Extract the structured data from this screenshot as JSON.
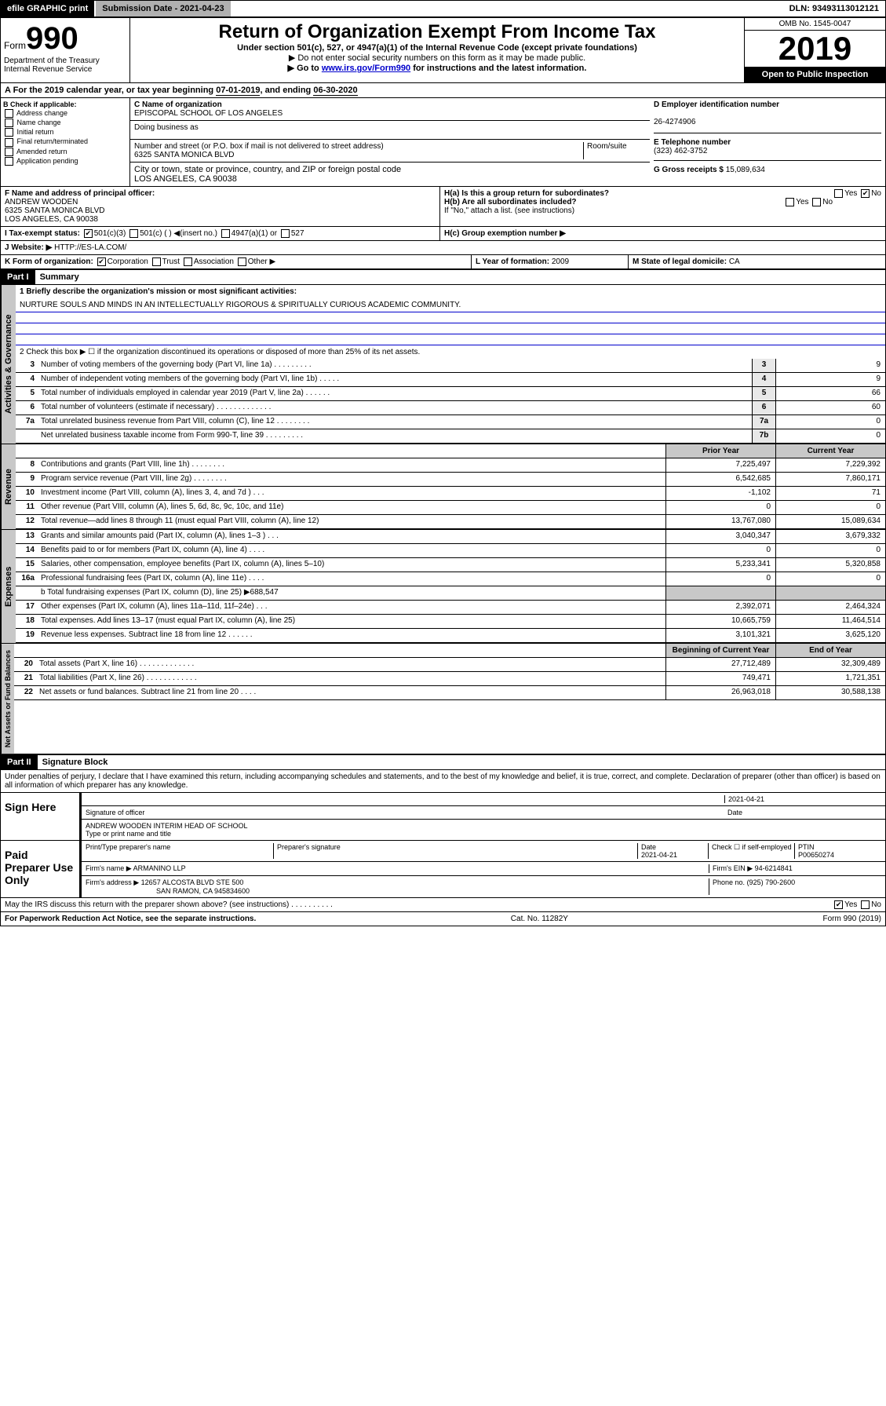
{
  "topbar": {
    "efile": "efile GRAPHIC print",
    "submission": "Submission Date - 2021-04-23",
    "dln": "DLN: 93493113012121"
  },
  "header": {
    "form_prefix": "Form",
    "form_number": "990",
    "dept": "Department of the Treasury Internal Revenue Service",
    "title": "Return of Organization Exempt From Income Tax",
    "subtitle1": "Under section 501(c), 527, or 4947(a)(1) of the Internal Revenue Code (except private foundations)",
    "subtitle2": "▶ Do not enter social security numbers on this form as it may be made public.",
    "subtitle3_pre": "▶ Go to ",
    "subtitle3_link": "www.irs.gov/Form990",
    "subtitle3_post": " for instructions and the latest information.",
    "omb": "OMB No. 1545-0047",
    "year": "2019",
    "open": "Open to Public Inspection"
  },
  "period": {
    "text_pre": "A For the 2019 calendar year, or tax year beginning ",
    "begin": "07-01-2019",
    "mid": ", and ending ",
    "end": "06-30-2020"
  },
  "boxB": {
    "label": "B Check if applicable:",
    "opts": [
      "Address change",
      "Name change",
      "Initial return",
      "Final return/terminated",
      "Amended return",
      "Application pending"
    ]
  },
  "boxC": {
    "name_label": "C Name of organization",
    "name": "EPISCOPAL SCHOOL OF LOS ANGELES",
    "dba_label": "Doing business as",
    "addr_label": "Number and street (or P.O. box if mail is not delivered to street address)",
    "room_label": "Room/suite",
    "addr": "6325 SANTA MONICA BLVD",
    "city_label": "City or town, state or province, country, and ZIP or foreign postal code",
    "city": "LOS ANGELES, CA  90038"
  },
  "boxD": {
    "label": "D Employer identification number",
    "val": "26-4274906"
  },
  "boxE": {
    "label": "E Telephone number",
    "val": "(323) 462-3752"
  },
  "boxG": {
    "label": "G Gross receipts $",
    "val": "15,089,634"
  },
  "boxF": {
    "label": "F Name and address of principal officer:",
    "name": "ANDREW WOODEN",
    "addr1": "6325 SANTA MONICA BLVD",
    "addr2": "LOS ANGELES, CA  90038"
  },
  "boxH": {
    "a": "H(a)  Is this a group return for subordinates?",
    "b": "H(b)  Are all subordinates included?",
    "b_note": "If \"No,\" attach a list. (see instructions)",
    "c": "H(c)  Group exemption number ▶",
    "yes": "Yes",
    "no": "No"
  },
  "boxI": {
    "label": "I Tax-exempt status:",
    "o1": "501(c)(3)",
    "o2": "501(c) (  ) ◀(insert no.)",
    "o3": "4947(a)(1) or",
    "o4": "527"
  },
  "boxJ": {
    "label": "J Website: ▶",
    "val": "HTTP://ES-LA.COM/"
  },
  "boxK": {
    "label": "K Form of organization:",
    "o1": "Corporation",
    "o2": "Trust",
    "o3": "Association",
    "o4": "Other ▶"
  },
  "boxL": {
    "label": "L Year of formation:",
    "val": "2009"
  },
  "boxM": {
    "label": "M State of legal domicile:",
    "val": "CA"
  },
  "part1": {
    "label": "Part I",
    "title": "Summary"
  },
  "summary": {
    "l1_label": "1  Briefly describe the organization's mission or most significant activities:",
    "l1_val": "NURTURE SOULS AND MINDS IN AN INTELLECTUALLY RIGOROUS & SPIRITUALLY CURIOUS ACADEMIC COMMUNITY.",
    "l2": "2  Check this box ▶ ☐ if the organization discontinued its operations or disposed of more than 25% of its net assets.",
    "governance": [
      {
        "n": "3",
        "d": "Number of voting members of the governing body (Part VI, line 1a)  .    .    .    .    .    .    .    .    .",
        "b": "3",
        "v": "9"
      },
      {
        "n": "4",
        "d": "Number of independent voting members of the governing body (Part VI, line 1b)  .    .    .    .    .",
        "b": "4",
        "v": "9"
      },
      {
        "n": "5",
        "d": "Total number of individuals employed in calendar year 2019 (Part V, line 2a)  .    .    .    .    .    .",
        "b": "5",
        "v": "66"
      },
      {
        "n": "6",
        "d": "Total number of volunteers (estimate if necessary)  .    .    .    .    .    .    .    .    .    .    .    .    .",
        "b": "6",
        "v": "60"
      },
      {
        "n": "7a",
        "d": "Total unrelated business revenue from Part VIII, column (C), line 12  .    .    .    .    .    .    .    .",
        "b": "7a",
        "v": "0"
      },
      {
        "n": "",
        "d": "Net unrelated business taxable income from Form 990-T, line 39  .    .    .    .    .    .    .    .    .",
        "b": "7b",
        "v": "0"
      }
    ],
    "col_prior": "Prior Year",
    "col_current": "Current Year",
    "revenue": [
      {
        "n": "8",
        "d": "Contributions and grants (Part VIII, line 1h)  .    .    .    .    .    .    .    .",
        "p": "7,225,497",
        "c": "7,229,392"
      },
      {
        "n": "9",
        "d": "Program service revenue (Part VIII, line 2g)  .    .    .    .    .    .    .    .",
        "p": "6,542,685",
        "c": "7,860,171"
      },
      {
        "n": "10",
        "d": "Investment income (Part VIII, column (A), lines 3, 4, and 7d )  .    .    .",
        "p": "-1,102",
        "c": "71"
      },
      {
        "n": "11",
        "d": "Other revenue (Part VIII, column (A), lines 5, 6d, 8c, 9c, 10c, and 11e)",
        "p": "0",
        "c": "0"
      },
      {
        "n": "12",
        "d": "Total revenue—add lines 8 through 11 (must equal Part VIII, column (A), line 12)",
        "p": "13,767,080",
        "c": "15,089,634"
      }
    ],
    "expenses": [
      {
        "n": "13",
        "d": "Grants and similar amounts paid (Part IX, column (A), lines 1–3 )  .   .   .",
        "p": "3,040,347",
        "c": "3,679,332"
      },
      {
        "n": "14",
        "d": "Benefits paid to or for members (Part IX, column (A), line 4)  .    .    .    .",
        "p": "0",
        "c": "0"
      },
      {
        "n": "15",
        "d": "Salaries, other compensation, employee benefits (Part IX, column (A), lines 5–10)",
        "p": "5,233,341",
        "c": "5,320,858"
      },
      {
        "n": "16a",
        "d": "Professional fundraising fees (Part IX, column (A), line 11e)  .    .    .    .",
        "p": "0",
        "c": "0"
      }
    ],
    "l16b": "b  Total fundraising expenses (Part IX, column (D), line 25) ▶688,547",
    "expenses2": [
      {
        "n": "17",
        "d": "Other expenses (Part IX, column (A), lines 11a–11d, 11f–24e)  .    .    .",
        "p": "2,392,071",
        "c": "2,464,324"
      },
      {
        "n": "18",
        "d": "Total expenses. Add lines 13–17 (must equal Part IX, column (A), line 25)",
        "p": "10,665,759",
        "c": "11,464,514"
      },
      {
        "n": "19",
        "d": "Revenue less expenses. Subtract line 18 from line 12  .    .    .    .    .    .",
        "p": "3,101,321",
        "c": "3,625,120"
      }
    ],
    "col_begin": "Beginning of Current Year",
    "col_end": "End of Year",
    "netassets": [
      {
        "n": "20",
        "d": "Total assets (Part X, line 16)  .    .    .    .    .    .    .    .    .    .    .    .    .",
        "p": "27,712,489",
        "c": "32,309,489"
      },
      {
        "n": "21",
        "d": "Total liabilities (Part X, line 26)  .    .    .    .    .    .    .    .    .    .    .    .",
        "p": "749,471",
        "c": "1,721,351"
      },
      {
        "n": "22",
        "d": "Net assets or fund balances. Subtract line 21 from line 20  .    .    .    .",
        "p": "26,963,018",
        "c": "30,588,138"
      }
    ]
  },
  "part2": {
    "label": "Part II",
    "title": "Signature Block"
  },
  "perjury": "Under penalties of perjury, I declare that I have examined this return, including accompanying schedules and statements, and to the best of my knowledge and belief, it is true, correct, and complete. Declaration of preparer (other than officer) is based on all information of which preparer has any knowledge.",
  "sign": {
    "label": "Sign Here",
    "sig_officer": "Signature of officer",
    "date": "2021-04-21",
    "date_label": "Date",
    "name": "ANDREW WOODEN  INTERIM HEAD OF SCHOOL",
    "name_label": "Type or print name and title"
  },
  "paid": {
    "label": "Paid Preparer Use Only",
    "h1": "Print/Type preparer's name",
    "h2": "Preparer's signature",
    "h3": "Date",
    "h4": "Check ☐ if self-employed",
    "h5": "PTIN",
    "date": "2021-04-21",
    "ptin": "P00650274",
    "firm_label": "Firm's name    ▶",
    "firm": "ARMANINO LLP",
    "ein_label": "Firm's EIN ▶",
    "ein": "94-6214841",
    "addr_label": "Firm's address ▶",
    "addr1": "12657 ALCOSTA BLVD STE 500",
    "addr2": "SAN RAMON, CA  945834600",
    "phone_label": "Phone no.",
    "phone": "(925) 790-2600"
  },
  "discuss": "May the IRS discuss this return with the preparer shown above? (see instructions)  .    .    .    .    .    .    .    .    .    .",
  "footer": {
    "l": "For Paperwork Reduction Act Notice, see the separate instructions.",
    "c": "Cat. No. 11282Y",
    "r": "Form 990 (2019)"
  },
  "labels": {
    "gov": "Activities & Governance",
    "rev": "Revenue",
    "exp": "Expenses",
    "net": "Net Assets or Fund Balances"
  }
}
